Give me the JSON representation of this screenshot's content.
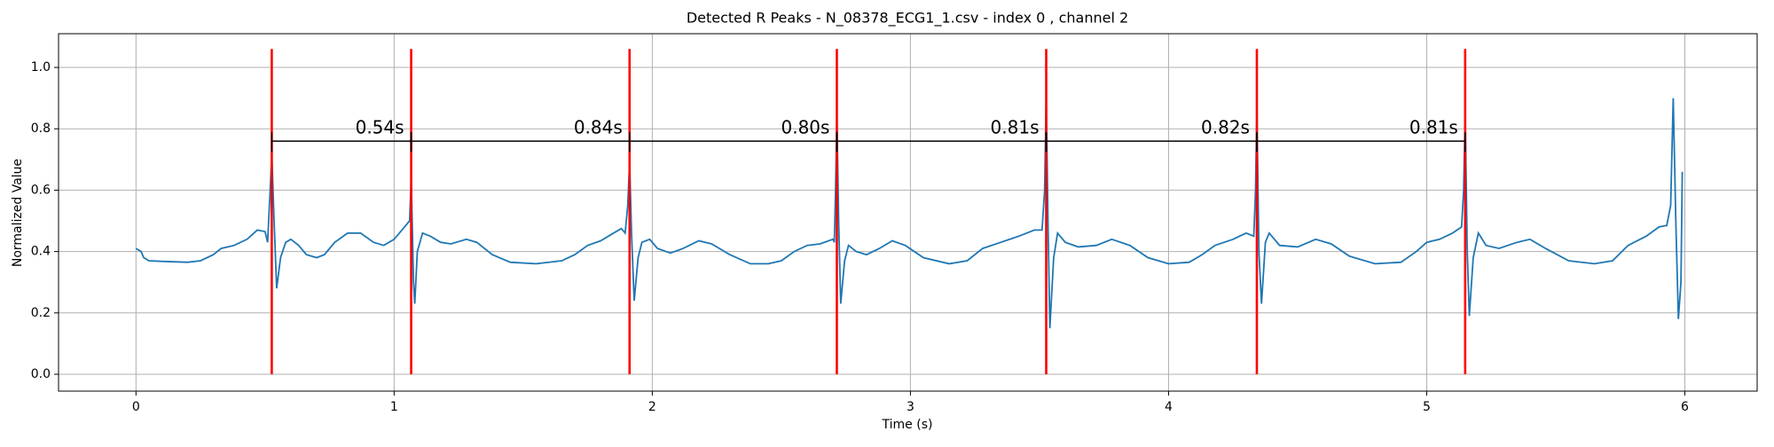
{
  "chart_data": {
    "type": "line",
    "title": "Detected R Peaks - N_08378_ECG1_1.csv - index 0 , channel 2",
    "x_label": "Time (s)",
    "y_label": "Normalized Value",
    "color": "#1f77b4",
    "grid": true,
    "xlim": [
      -0.3,
      6.28
    ],
    "ylim": [
      -0.055,
      1.11
    ],
    "xticks": [
      0,
      1,
      2,
      3,
      4,
      5,
      6
    ],
    "yticks": [
      {
        "value": 0,
        "label": "0.0"
      },
      0.2,
      0.4,
      0.6,
      0.8,
      {
        "value": 1,
        "label": "1.0"
      }
    ],
    "x": [
      0,
      0.02,
      0.03,
      0.05,
      0.1,
      0.2,
      0.25,
      0.3,
      0.33,
      0.38,
      0.43,
      0.47,
      0.5,
      0.51,
      0.52,
      0.526,
      0.535,
      0.545,
      0.56,
      0.58,
      0.6,
      0.63,
      0.66,
      0.7,
      0.73,
      0.77,
      0.82,
      0.87,
      0.92,
      0.96,
      1.0,
      1.03,
      1.05,
      1.06,
      1.066,
      1.075,
      1.08,
      1.09,
      1.11,
      1.14,
      1.18,
      1.22,
      1.28,
      1.32,
      1.38,
      1.45,
      1.55,
      1.65,
      1.7,
      1.75,
      1.8,
      1.85,
      1.88,
      1.895,
      1.905,
      1.912,
      1.92,
      1.93,
      1.945,
      1.96,
      1.99,
      2.02,
      2.07,
      2.12,
      2.18,
      2.23,
      2.3,
      2.38,
      2.45,
      2.5,
      2.55,
      2.6,
      2.65,
      2.7,
      2.705,
      2.71,
      2.715,
      2.722,
      2.73,
      2.745,
      2.76,
      2.79,
      2.83,
      2.88,
      2.93,
      2.98,
      3.05,
      3.15,
      3.22,
      3.28,
      3.35,
      3.42,
      3.48,
      3.51,
      3.52,
      3.526,
      3.533,
      3.54,
      3.555,
      3.57,
      3.6,
      3.65,
      3.72,
      3.78,
      3.85,
      3.92,
      4.0,
      4.08,
      4.13,
      4.18,
      4.25,
      4.3,
      4.33,
      4.337,
      4.342,
      4.35,
      4.36,
      4.375,
      4.39,
      4.43,
      4.5,
      4.57,
      4.63,
      4.7,
      4.8,
      4.9,
      4.96,
      5.0,
      5.05,
      5.1,
      5.135,
      5.143,
      5.149,
      5.157,
      5.165,
      5.18,
      5.2,
      5.23,
      5.28,
      5.35,
      5.4,
      5.46,
      5.55,
      5.65,
      5.72,
      5.78,
      5.85,
      5.9,
      5.93,
      5.945,
      5.955,
      5.965,
      5.975,
      5.985,
      5.99
    ],
    "values": [
      0.41,
      0.4,
      0.38,
      0.37,
      0.368,
      0.365,
      0.37,
      0.39,
      0.41,
      0.42,
      0.44,
      0.47,
      0.465,
      0.43,
      0.6,
      0.72,
      0.5,
      0.28,
      0.38,
      0.43,
      0.44,
      0.42,
      0.39,
      0.38,
      0.39,
      0.43,
      0.46,
      0.46,
      0.43,
      0.42,
      0.44,
      0.47,
      0.49,
      0.5,
      0.64,
      0.3,
      0.23,
      0.4,
      0.46,
      0.45,
      0.43,
      0.425,
      0.44,
      0.43,
      0.39,
      0.365,
      0.36,
      0.37,
      0.39,
      0.42,
      0.435,
      0.46,
      0.475,
      0.46,
      0.55,
      0.69,
      0.45,
      0.24,
      0.38,
      0.43,
      0.44,
      0.41,
      0.395,
      0.41,
      0.435,
      0.425,
      0.39,
      0.36,
      0.36,
      0.37,
      0.4,
      0.42,
      0.425,
      0.44,
      0.43,
      0.6,
      0.84,
      0.5,
      0.23,
      0.37,
      0.42,
      0.4,
      0.39,
      0.41,
      0.435,
      0.42,
      0.38,
      0.36,
      0.37,
      0.41,
      0.43,
      0.45,
      0.47,
      0.47,
      0.6,
      0.91,
      0.5,
      0.15,
      0.38,
      0.46,
      0.43,
      0.415,
      0.42,
      0.44,
      0.42,
      0.38,
      0.36,
      0.365,
      0.39,
      0.42,
      0.44,
      0.46,
      0.45,
      0.6,
      0.87,
      0.4,
      0.23,
      0.43,
      0.46,
      0.42,
      0.415,
      0.44,
      0.425,
      0.385,
      0.36,
      0.365,
      0.4,
      0.43,
      0.44,
      0.46,
      0.48,
      0.6,
      0.85,
      0.4,
      0.19,
      0.38,
      0.46,
      0.42,
      0.41,
      0.43,
      0.44,
      0.41,
      0.37,
      0.36,
      0.37,
      0.42,
      0.45,
      0.48,
      0.485,
      0.55,
      0.9,
      0.5,
      0.18,
      0.3,
      0.66
    ],
    "peaks": {
      "color": "red",
      "x": [
        0.526,
        1.066,
        1.912,
        2.715,
        3.526,
        4.342,
        5.149
      ],
      "height": 1.06
    },
    "intervals": {
      "level": 0.76,
      "values": [
        0.54,
        0.84,
        0.8,
        0.81,
        0.82,
        0.81
      ],
      "value_labels": [
        "0.54s",
        "0.84s",
        "0.80s",
        "0.81s",
        "0.82s",
        "0.81s"
      ]
    }
  }
}
